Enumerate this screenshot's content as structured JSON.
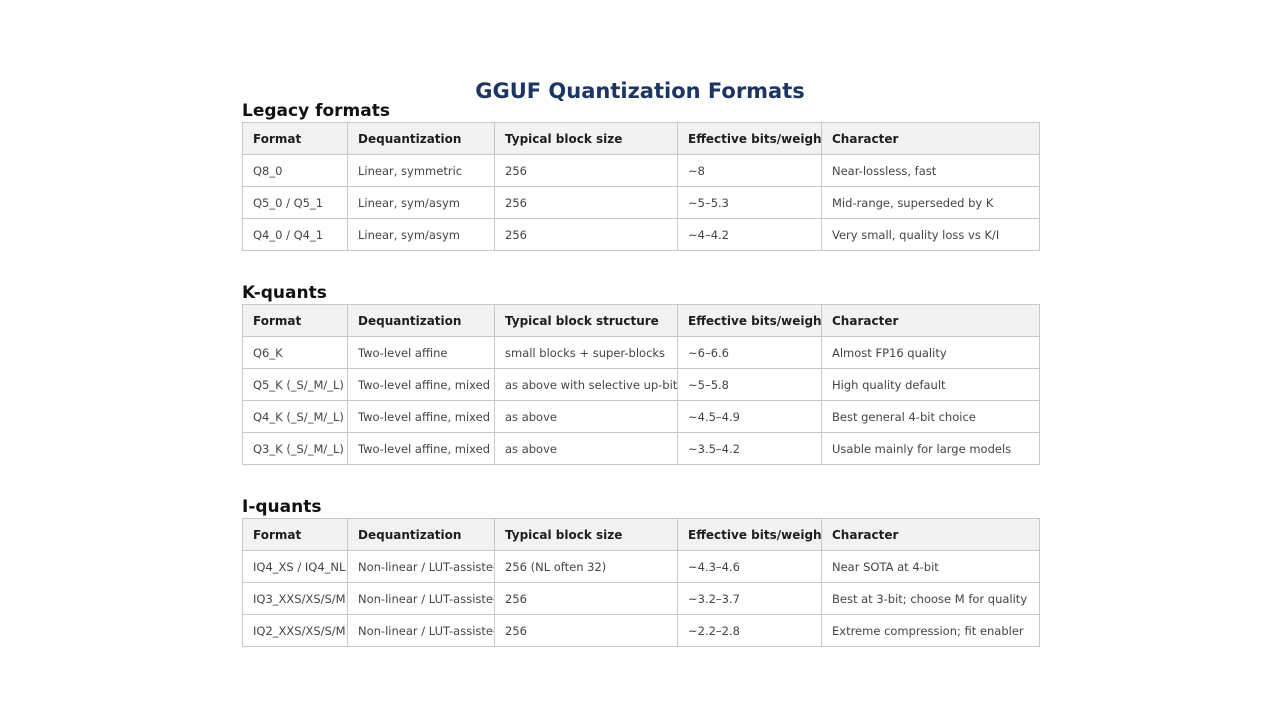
{
  "title": "GGUF Quantization Formats",
  "sections": [
    {
      "heading": "Legacy formats",
      "columns": [
        "Format",
        "Dequantization",
        "Typical block size",
        "Effective bits/weight",
        "Character"
      ],
      "rows": [
        [
          "Q8_0",
          "Linear, symmetric",
          "256",
          "~8",
          "Near-lossless, fast"
        ],
        [
          "Q5_0 / Q5_1",
          "Linear, sym/asym",
          "256",
          "~5–5.3",
          "Mid-range, superseded by K"
        ],
        [
          "Q4_0 / Q4_1",
          "Linear, sym/asym",
          "256",
          "~4–4.2",
          "Very small, quality loss vs K/I"
        ]
      ]
    },
    {
      "heading": "K-quants",
      "columns": [
        "Format",
        "Dequantization",
        "Typical block structure",
        "Effective bits/weight",
        "Character"
      ],
      "rows": [
        [
          "Q6_K",
          "Two-level affine",
          "small blocks + super-blocks",
          "~6–6.6",
          "Almost FP16 quality"
        ],
        [
          "Q5_K (_S/_M/_L)",
          "Two-level affine, mixed",
          "as above with selective up-bits",
          "~5–5.8",
          "High quality default"
        ],
        [
          "Q4_K (_S/_M/_L)",
          "Two-level affine, mixed",
          "as above",
          "~4.5–4.9",
          "Best general 4-bit choice"
        ],
        [
          "Q3_K (_S/_M/_L)",
          "Two-level affine, mixed",
          "as above",
          "~3.5–4.2",
          "Usable mainly for large models"
        ]
      ]
    },
    {
      "heading": "I-quants",
      "columns": [
        "Format",
        "Dequantization",
        "Typical block size",
        "Effective bits/weight",
        "Character"
      ],
      "rows": [
        [
          "IQ4_XS / IQ4_NL",
          "Non-linear / LUT-assisted",
          "256 (NL often 32)",
          "~4.3–4.6",
          "Near SOTA at 4-bit"
        ],
        [
          "IQ3_XXS/XS/S/M",
          "Non-linear / LUT-assisted",
          "256",
          "~3.2–3.7",
          "Best at 3-bit; choose M for quality"
        ],
        [
          "IQ2_XXS/XS/S/M",
          "Non-linear / LUT-assisted",
          "256",
          "~2.2–2.8",
          "Extreme compression; fit enabler"
        ]
      ]
    }
  ]
}
